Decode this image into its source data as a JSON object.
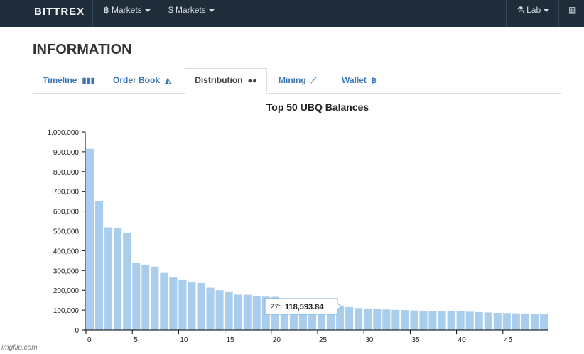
{
  "app": {
    "brand": "BITTREX",
    "nav": {
      "btc_markets": "Markets",
      "usd_markets": "Markets",
      "lab": "Lab"
    }
  },
  "page": {
    "title": "INFORMATION"
  },
  "tabs": [
    {
      "label": "Timeline",
      "icon": "bar-chart-icon"
    },
    {
      "label": "Order Book",
      "icon": "area-chart-icon"
    },
    {
      "label": "Distribution",
      "icon": "users-icon"
    },
    {
      "label": "Mining",
      "icon": "line-chart-icon"
    },
    {
      "label": "Wallet",
      "icon": "bitcoin-icon"
    }
  ],
  "colors": {
    "navbar": "#1f2d3a",
    "bar": "#a9cdec",
    "accent": "#3a77b4"
  },
  "chart_data": {
    "type": "bar",
    "title": "Top 50 UBQ Balances",
    "x": [
      0,
      1,
      2,
      3,
      4,
      5,
      6,
      7,
      8,
      9,
      10,
      11,
      12,
      13,
      14,
      15,
      16,
      17,
      18,
      19,
      20,
      21,
      22,
      23,
      24,
      25,
      26,
      27,
      28,
      29,
      30,
      31,
      32,
      33,
      34,
      35,
      36,
      37,
      38,
      39,
      40,
      41,
      42,
      43,
      44,
      45,
      46,
      47,
      48,
      49
    ],
    "values": [
      915000,
      652000,
      518000,
      515000,
      490000,
      337000,
      330000,
      320000,
      288000,
      265000,
      252000,
      243000,
      237000,
      213000,
      200000,
      194000,
      178000,
      177000,
      172000,
      171000,
      170000,
      160000,
      153000,
      147000,
      140000,
      133000,
      127000,
      118593.84,
      115000,
      110000,
      108000,
      105000,
      103000,
      101000,
      100000,
      98000,
      97000,
      96000,
      95000,
      94000,
      93000,
      92000,
      90000,
      88000,
      86000,
      85000,
      84000,
      83000,
      82000,
      80000
    ],
    "yticks": [
      0,
      100000,
      200000,
      300000,
      400000,
      500000,
      600000,
      700000,
      800000,
      900000,
      1000000
    ],
    "ytick_labels": [
      "0",
      "100,000",
      "200,000",
      "300,000",
      "400,000",
      "500,000",
      "600,000",
      "700,000",
      "800,000",
      "900,000",
      "1,000,000"
    ],
    "xtick_values": [
      0,
      5,
      10,
      15,
      20,
      25,
      30,
      35,
      40,
      45
    ],
    "xtick_labels": [
      "0",
      "5",
      "10",
      "15",
      "20",
      "25",
      "30",
      "35",
      "40",
      "45"
    ],
    "ylim": [
      0,
      1000000
    ],
    "tooltip": {
      "index_label": "27:",
      "value_label": "118,593.84"
    }
  },
  "watermark": "imgflip.com"
}
